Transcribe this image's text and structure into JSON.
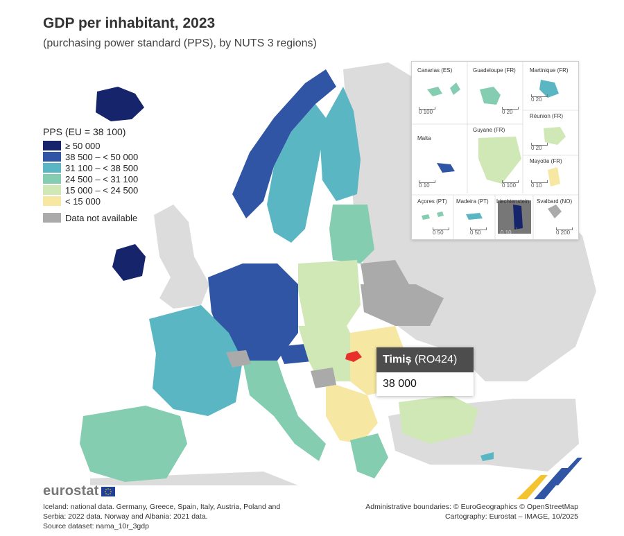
{
  "header": {
    "title": "GDP per inhabitant, 2023",
    "subtitle": "(purchasing power standard (PPS), by NUTS 3 regions)"
  },
  "legend": {
    "title": "PPS (EU = 38 100)",
    "classes": [
      {
        "label": "≥ 50 000",
        "color": "#16256b"
      },
      {
        "label": "38 500 – < 50 000",
        "color": "#2f55a4"
      },
      {
        "label": "31 100 – < 38 500",
        "color": "#5bb6c4"
      },
      {
        "label": "24 500 – < 31 100",
        "color": "#85cdb0"
      },
      {
        "label": "15 000 – < 24 500",
        "color": "#cfe8b5"
      },
      {
        "label": "< 15 000",
        "color": "#f6e8a2"
      }
    ],
    "na_label": "Data not available",
    "na_color": "#aaaaaa"
  },
  "insets": [
    {
      "name": "Canarias (ES)",
      "scale": "0   100"
    },
    {
      "name": "Guadeloupe (FR)",
      "scale": "0   20"
    },
    {
      "name": "Martinique (FR)",
      "scale": "0   20"
    },
    {
      "name": "Réunion (FR)",
      "scale": "0   20"
    },
    {
      "name": "Malta",
      "scale": "0   10"
    },
    {
      "name": "Guyane (FR)",
      "scale": "0   100"
    },
    {
      "name": "Mayotte (FR)",
      "scale": "0   10"
    },
    {
      "name": "Açores (PT)",
      "scale": "0   50"
    },
    {
      "name": "Madeira (PT)",
      "scale": "0   50"
    },
    {
      "name": "Liechtenstein",
      "scale": "0   10"
    },
    {
      "name": "Svalbard (NO)",
      "scale": "0   200"
    }
  ],
  "tooltip": {
    "region": "Timiș",
    "code": "(RO424)",
    "value": "38 000"
  },
  "footer": {
    "brand": "eurostat",
    "note_1": "Iceland: national data. Germany, Greece, Spain, Italy, Austria, Poland and",
    "note_2": "Serbia: 2022 data. Norway and Albania: 2021 data.",
    "source": "Source dataset: nama_10r_3gdp",
    "credit_1": "Administrative boundaries: © EuroGeographics © OpenStreetMap",
    "credit_2": "Cartography: Eurostat – IMAGE, 10/2025"
  },
  "colors": {
    "highlight": "#e8302a",
    "non_eu_land": "#dcdcdc",
    "sea": "#ffffff"
  }
}
